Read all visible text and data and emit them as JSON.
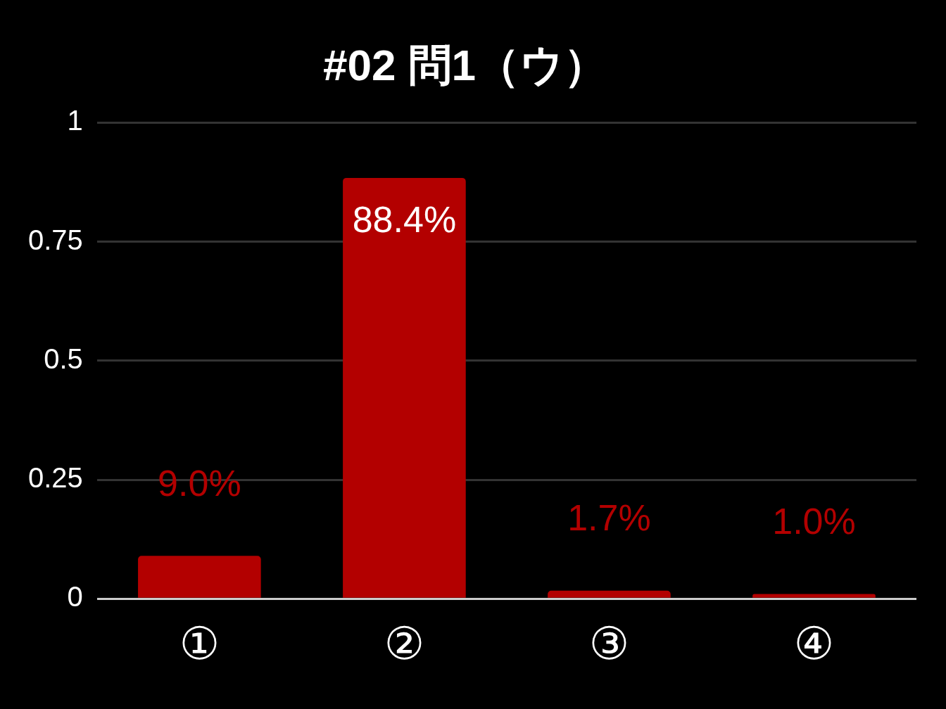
{
  "chart_data": {
    "type": "bar",
    "title": "#02 問1（ウ）",
    "categories": [
      "①",
      "②",
      "③",
      "④"
    ],
    "values": [
      0.09,
      0.884,
      0.017,
      0.01
    ],
    "value_labels": [
      "9.0%",
      "88.4%",
      "1.7%",
      "1.0%"
    ],
    "color": "#b30000",
    "ylim": [
      0,
      1
    ],
    "yticks": [
      0,
      0.25,
      0.5,
      0.75,
      1
    ],
    "grid": "y"
  }
}
